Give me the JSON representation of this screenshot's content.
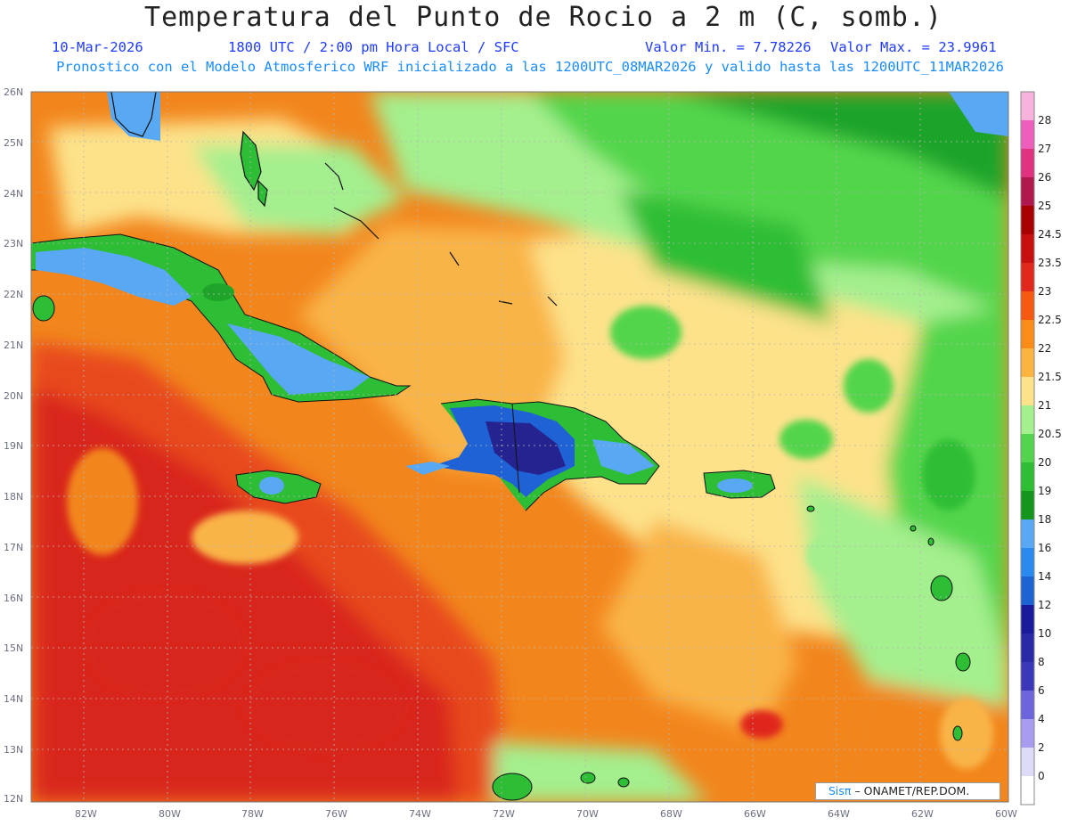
{
  "header": {
    "title": "Temperatura del Punto de Rocio a 2 m (C, somb.)",
    "date": "10-Mar-2026",
    "time": "1800 UTC / 2:00 pm Hora Local / SFC",
    "min_value": "Valor Min. = 7.78226",
    "max_value": "Valor Max. = 23.9961",
    "model_info": "Pronostico con el Modelo Atmosferico WRF inicializado a las 1200UTC_08MAR2026 y valido hasta las  1200UTC_11MAR2026"
  },
  "map": {
    "lat_labels": [
      "26N",
      "25N",
      "24N",
      "23N",
      "22N",
      "21N",
      "20N",
      "19N",
      "18N",
      "17N",
      "16N",
      "15N",
      "14N",
      "13N",
      "12N"
    ],
    "lon_labels": [
      "82W",
      "80W",
      "78W",
      "76W",
      "74W",
      "72W",
      "70W",
      "68W",
      "66W",
      "64W",
      "62W",
      "60W"
    ],
    "colors": {
      "deep_red": "#d9281e",
      "red": "#e8491c",
      "orange": "#f2861d",
      "light_orange": "#f9b447",
      "yellow": "#fde28a",
      "light_green": "#a4ef8e",
      "green": "#4fd54a",
      "dark_green": "#1fa42a",
      "light_blue": "#58a8f4",
      "blue": "#1e62d6",
      "dark_blue": "#25238f"
    }
  },
  "colorbar": {
    "labels": [
      "28",
      "27",
      "26",
      "25",
      "24.5",
      "23.5",
      "23",
      "22.5",
      "22",
      "21.5",
      "21",
      "20.5",
      "20",
      "19",
      "18",
      "16",
      "14",
      "12",
      "10",
      "8",
      "6",
      "4",
      "2",
      "0"
    ],
    "colors": [
      "#f7b3dc",
      "#ee5fbd",
      "#e0327f",
      "#b0174d",
      "#a80000",
      "#c80f0f",
      "#e0281c",
      "#f55a10",
      "#fb8c17",
      "#fbb43f",
      "#fde28a",
      "#a4ef8e",
      "#52d54c",
      "#2dbe36",
      "#14961c",
      "#58a8f4",
      "#2b8af0",
      "#1d63d4",
      "#1a1a9c",
      "#2a29a6",
      "#3b37b9",
      "#6d65dc",
      "#a89cf0",
      "#dcdcf8",
      "#ffffff"
    ]
  },
  "credit": {
    "logo": "Sisπ",
    "org": "– ONAMET/REP.DOM."
  }
}
